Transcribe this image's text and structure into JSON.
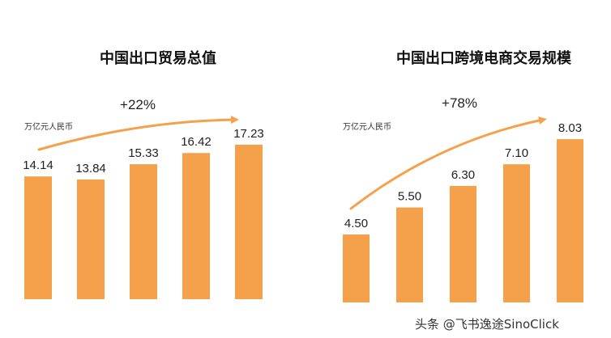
{
  "chart_data": [
    {
      "type": "bar",
      "title": "中国出口贸易总值",
      "unit_label": "万亿元人民币",
      "growth_label": "+22%",
      "values": [
        14.14,
        13.84,
        15.33,
        16.42,
        17.23
      ],
      "value_labels": [
        "14.14",
        "13.84",
        "15.33",
        "16.42",
        "17.23"
      ],
      "bar_color": "#f5a04a"
    },
    {
      "type": "bar",
      "title": "中国出口跨境电商交易规模",
      "unit_label": "万亿元人民币",
      "growth_label": "+78%",
      "values": [
        4.5,
        5.5,
        6.3,
        7.1,
        8.03
      ],
      "value_labels": [
        "4.50",
        "5.50",
        "6.30",
        "7.10",
        "8.03"
      ],
      "bar_color": "#f5a04a"
    }
  ],
  "watermark": {
    "text": "头条 @飞书逸途SinoClick"
  },
  "colors": {
    "bar": "#f5a04a",
    "arrow": "#f5a04a"
  }
}
